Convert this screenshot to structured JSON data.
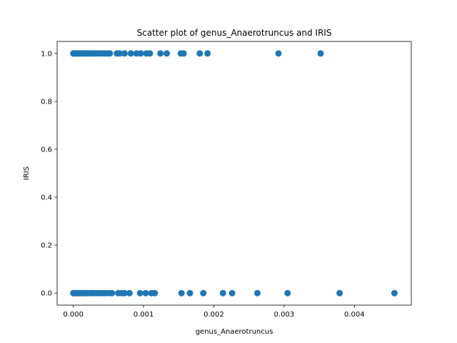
{
  "chart_data": {
    "type": "scatter",
    "title": "Scatter plot of genus_Anaerotruncus and IRIS",
    "xlabel": "genus_Anaerotruncus",
    "ylabel": "IRIS",
    "xlim": [
      -0.00023,
      0.00481
    ],
    "ylim": [
      -0.05,
      1.05
    ],
    "xticks": [
      0.0,
      0.001,
      0.002,
      0.003,
      0.004
    ],
    "xtick_labels": [
      "0.000",
      "0.001",
      "0.002",
      "0.003",
      "0.004"
    ],
    "yticks": [
      0.0,
      0.2,
      0.4,
      0.6,
      0.8,
      1.0
    ],
    "ytick_labels": [
      "0.0",
      "0.2",
      "0.4",
      "0.6",
      "0.8",
      "1.0"
    ],
    "grid": false,
    "marker_color": "#1f77b4",
    "series": [
      {
        "x": [
          0.0,
          1e-05,
          2e-05,
          3e-05,
          5e-05,
          7e-05,
          9e-05,
          0.00011,
          0.00013,
          0.00015,
          0.00018,
          0.00021,
          0.00024,
          0.00027,
          0.0003,
          0.00033,
          0.00037,
          0.0004,
          0.00044,
          0.00048,
          0.00052,
          0.00062,
          0.00066,
          0.00073,
          0.00082,
          0.0009,
          0.00096,
          0.00104,
          0.00109,
          0.00124,
          0.00133,
          0.00153,
          0.00157,
          0.0018,
          0.00191,
          0.00292,
          0.00352
        ],
        "y": [
          1,
          1,
          1,
          1,
          1,
          1,
          1,
          1,
          1,
          1,
          1,
          1,
          1,
          1,
          1,
          1,
          1,
          1,
          1,
          1,
          1,
          1,
          1,
          1,
          1,
          1,
          1,
          1,
          1,
          1,
          1,
          1,
          1,
          1,
          1,
          1,
          1
        ]
      },
      {
        "x": [
          0.0,
          1e-05,
          2e-05,
          3e-05,
          5e-05,
          7e-05,
          9e-05,
          0.00011,
          0.00013,
          0.00015,
          0.00018,
          0.00021,
          0.00024,
          0.00027,
          0.0003,
          0.00034,
          0.00038,
          0.00042,
          0.00046,
          0.00051,
          0.00055,
          0.00064,
          0.00069,
          0.00073,
          0.0008,
          0.00095,
          0.00103,
          0.00111,
          0.00116,
          0.00154,
          0.00166,
          0.00185,
          0.00213,
          0.00226,
          0.00262,
          0.00305,
          0.00379,
          0.00457
        ],
        "y": [
          0,
          0,
          0,
          0,
          0,
          0,
          0,
          0,
          0,
          0,
          0,
          0,
          0,
          0,
          0,
          0,
          0,
          0,
          0,
          0,
          0,
          0,
          0,
          0,
          0,
          0,
          0,
          0,
          0,
          0,
          0,
          0,
          0,
          0,
          0,
          0,
          0,
          0
        ]
      }
    ]
  }
}
